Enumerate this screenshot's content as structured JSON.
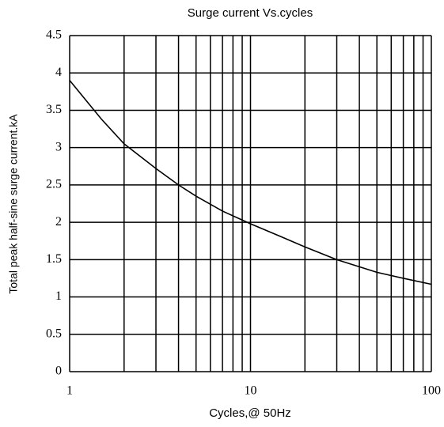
{
  "chart_data": {
    "type": "line",
    "title": "Surge current Vs.cycles",
    "x_label": "Cycles,@ 50Hz",
    "y_label": "Total peak half-sine surge current.kA",
    "xscale": "log",
    "xlim": [
      1,
      100
    ],
    "xticks": [
      1,
      10,
      100
    ],
    "xgrid": [
      2,
      3,
      4,
      5,
      6,
      7,
      8,
      9,
      20,
      30,
      40,
      50,
      60,
      70,
      80,
      90
    ],
    "ylim": [
      0,
      4.5
    ],
    "yticks": [
      0,
      0.5,
      1,
      1.5,
      2,
      2.5,
      3,
      3.5,
      4,
      4.5
    ],
    "grid": true,
    "x": [
      1,
      1.5,
      2,
      3,
      4,
      5,
      7,
      10,
      15,
      20,
      30,
      50,
      70,
      100
    ],
    "series": [
      {
        "color": "#000000",
        "values": [
          3.9,
          3.38,
          3.05,
          2.72,
          2.5,
          2.35,
          2.15,
          1.98,
          1.8,
          1.67,
          1.5,
          1.33,
          1.25,
          1.17
        ]
      }
    ]
  }
}
